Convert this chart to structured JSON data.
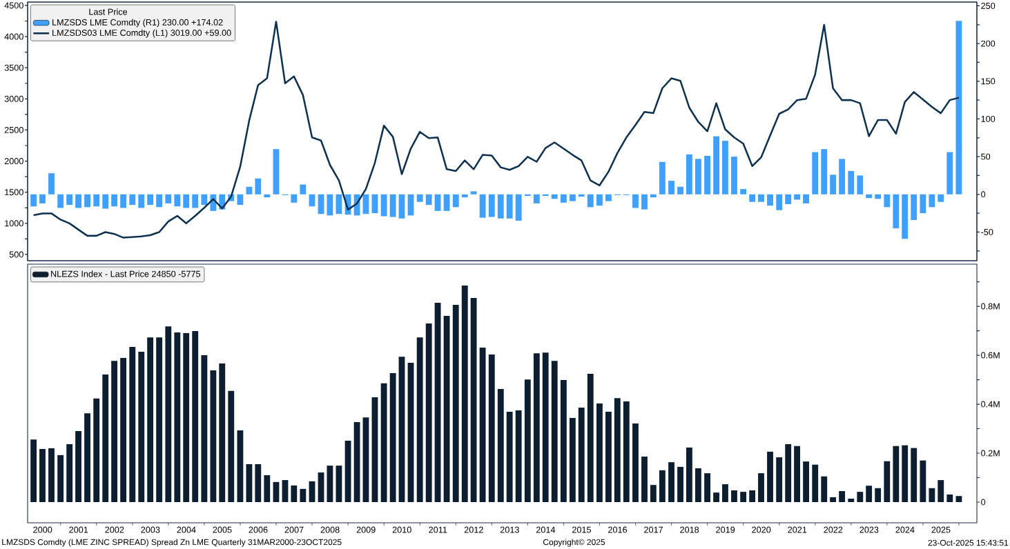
{
  "chart_data": [
    {
      "type": "bar",
      "legend": "top left",
      "legend_title": "Last Price",
      "tick_labels": "y",
      "x": [
        "2000-03-31",
        "2000-06-30",
        "2000-09-30",
        "2000-12-31",
        "2001-03-31",
        "2001-06-30",
        "2001-09-30",
        "2001-12-31",
        "2002-03-31",
        "2002-06-30",
        "2002-09-30",
        "2002-12-31",
        "2003-03-31",
        "2003-06-30",
        "2003-09-30",
        "2003-12-31",
        "2004-03-31",
        "2004-06-30",
        "2004-09-30",
        "2004-12-31",
        "2005-03-31",
        "2005-06-30",
        "2005-09-30",
        "2005-12-31",
        "2006-03-31",
        "2006-06-30",
        "2006-09-30",
        "2006-12-31",
        "2007-03-31",
        "2007-06-30",
        "2007-09-30",
        "2007-12-31",
        "2008-03-31",
        "2008-06-30",
        "2008-09-30",
        "2008-12-31",
        "2009-03-31",
        "2009-06-30",
        "2009-09-30",
        "2009-12-31",
        "2010-03-31",
        "2010-06-30",
        "2010-09-30",
        "2010-12-31",
        "2011-03-31",
        "2011-06-30",
        "2011-09-30",
        "2011-12-31",
        "2012-03-31",
        "2012-06-30",
        "2012-09-30",
        "2012-12-31",
        "2013-03-31",
        "2013-06-30",
        "2013-09-30",
        "2013-12-31",
        "2014-03-31",
        "2014-06-30",
        "2014-09-30",
        "2014-12-31",
        "2015-03-31",
        "2015-06-30",
        "2015-09-30",
        "2015-12-31",
        "2016-03-31",
        "2016-06-30",
        "2016-09-30",
        "2016-12-31",
        "2017-03-31",
        "2017-06-30",
        "2017-09-30",
        "2017-12-31",
        "2018-03-31",
        "2018-06-30",
        "2018-09-30",
        "2018-12-31",
        "2019-03-31",
        "2019-06-30",
        "2019-09-30",
        "2019-12-31",
        "2020-03-31",
        "2020-06-30",
        "2020-09-30",
        "2020-12-31",
        "2021-03-31",
        "2021-06-30",
        "2021-09-30",
        "2021-12-31",
        "2022-03-31",
        "2022-06-30",
        "2022-09-30",
        "2022-12-31",
        "2023-03-31",
        "2023-06-30",
        "2023-09-30",
        "2023-12-31",
        "2024-03-31",
        "2024-06-30",
        "2024-09-30",
        "2024-12-31",
        "2025-03-31",
        "2025-06-30",
        "2025-09-30",
        "2025-12-31"
      ],
      "xlim": [
        "2000-02",
        "2026-07"
      ],
      "ylim": [
        400,
        4555
      ],
      "yticks": [
        500,
        {
          "value": 750,
          "label": null
        },
        1000,
        {
          "value": 1250,
          "label": null
        },
        1500,
        {
          "value": 1750,
          "label": null
        },
        2000,
        {
          "value": 2250,
          "label": null
        },
        2500,
        {
          "value": 2750,
          "label": null
        },
        3000,
        {
          "value": 3250,
          "label": null
        },
        3500,
        {
          "value": 3750,
          "label": null
        },
        4000,
        {
          "value": 4250,
          "label": null
        },
        4500
      ],
      "y2lim": [
        -88,
        255
      ],
      "y2ticks": [
        {
          "value": -75,
          "label": null
        },
        -50,
        {
          "value": -25,
          "label": null
        },
        0,
        {
          "value": 25,
          "label": null
        },
        50,
        {
          "value": 75,
          "label": null
        },
        100,
        {
          "value": 125,
          "label": null
        },
        150,
        {
          "value": 175,
          "label": null
        },
        200,
        {
          "value": 225,
          "label": null
        },
        250
      ],
      "series": [
        {
          "name": "LMZSDS LME Comdty (R1) 230.00 +174.02",
          "axis": "y2",
          "color": "#3fa0ff",
          "values": [
            -16,
            -12,
            28,
            -18,
            -14,
            -18,
            -17,
            -16,
            -19,
            -16,
            -18,
            -14,
            -18,
            -14,
            -17,
            -12,
            -16,
            -18,
            -18,
            -14,
            -22,
            -20,
            -9,
            -14,
            10,
            21,
            -4,
            60,
            -1,
            -11,
            13,
            -16,
            -26,
            -28,
            -26,
            -27,
            -28,
            -26,
            -25,
            -29,
            -30,
            -32,
            -28,
            -10,
            -14,
            -22,
            -22,
            -17,
            -4,
            4,
            -31,
            -30,
            -32,
            -32,
            -35,
            -2,
            -12,
            -2,
            -6,
            -11,
            -9,
            -3,
            -17,
            -15,
            -9,
            -1,
            -1,
            -18,
            -20,
            -4,
            43,
            18,
            10,
            53,
            47,
            51,
            77,
            71,
            50,
            7,
            -10,
            -10,
            -15,
            -21,
            -13,
            -7,
            -12,
            56,
            60,
            26,
            47,
            31,
            25,
            -5,
            -6,
            -17,
            -45,
            -59,
            -34,
            -25,
            -17,
            -10,
            56,
            230
          ]
        },
        {
          "name": "LMZSDS03 LME Comdty (L1) 3019.00 +59.00",
          "type": "line",
          "axis": "y",
          "color": "#0e3150",
          "values": [
            1130,
            1160,
            1160,
            1060,
            1000,
            900,
            800,
            800,
            860,
            830,
            770,
            780,
            790,
            810,
            860,
            1030,
            1120,
            1000,
            1120,
            1250,
            1390,
            1240,
            1430,
            1910,
            2650,
            3220,
            3330,
            4240,
            3250,
            3360,
            3060,
            2380,
            2330,
            1940,
            1690,
            1220,
            1320,
            1550,
            1970,
            2570,
            2390,
            1790,
            2200,
            2470,
            2370,
            2380,
            1870,
            1840,
            2010,
            1870,
            2100,
            2090,
            1900,
            1860,
            1920,
            2070,
            1990,
            2210,
            2300,
            2200,
            2100,
            2010,
            1690,
            1610,
            1830,
            2130,
            2380,
            2580,
            2790,
            2770,
            3170,
            3330,
            3290,
            2860,
            2630,
            2480,
            2930,
            2510,
            2380,
            2280,
            1920,
            2060,
            2410,
            2760,
            2830,
            2980,
            3000,
            3390,
            4190,
            3170,
            2980,
            2980,
            2930,
            2400,
            2660,
            2660,
            2440,
            2950,
            3110,
            2990,
            2870,
            2770,
            2980,
            3019
          ]
        }
      ]
    },
    {
      "type": "bar",
      "legend": "top left",
      "x": [
        "2000-03-31",
        "2000-06-30",
        "2000-09-30",
        "2000-12-31",
        "2001-03-31",
        "2001-06-30",
        "2001-09-30",
        "2001-12-31",
        "2002-03-31",
        "2002-06-30",
        "2002-09-30",
        "2002-12-31",
        "2003-03-31",
        "2003-06-30",
        "2003-09-30",
        "2003-12-31",
        "2004-03-31",
        "2004-06-30",
        "2004-09-30",
        "2004-12-31",
        "2005-03-31",
        "2005-06-30",
        "2005-09-30",
        "2005-12-31",
        "2006-03-31",
        "2006-06-30",
        "2006-09-30",
        "2006-12-31",
        "2007-03-31",
        "2007-06-30",
        "2007-09-30",
        "2007-12-31",
        "2008-03-31",
        "2008-06-30",
        "2008-09-30",
        "2008-12-31",
        "2009-03-31",
        "2009-06-30",
        "2009-09-30",
        "2009-12-31",
        "2010-03-31",
        "2010-06-30",
        "2010-09-30",
        "2010-12-31",
        "2011-03-31",
        "2011-06-30",
        "2011-09-30",
        "2011-12-31",
        "2012-03-31",
        "2012-06-30",
        "2012-09-30",
        "2012-12-31",
        "2013-03-31",
        "2013-06-30",
        "2013-09-30",
        "2013-12-31",
        "2014-03-31",
        "2014-06-30",
        "2014-09-30",
        "2014-12-31",
        "2015-03-31",
        "2015-06-30",
        "2015-09-30",
        "2015-12-31",
        "2016-03-31",
        "2016-06-30",
        "2016-09-30",
        "2016-12-31",
        "2017-03-31",
        "2017-06-30",
        "2017-09-30",
        "2017-12-31",
        "2018-03-31",
        "2018-06-30",
        "2018-09-30",
        "2018-12-31",
        "2019-03-31",
        "2019-06-30",
        "2019-09-30",
        "2019-12-31",
        "2020-03-31",
        "2020-06-30",
        "2020-09-30",
        "2020-12-31",
        "2021-03-31",
        "2021-06-30",
        "2021-09-30",
        "2021-12-31",
        "2022-03-31",
        "2022-06-30",
        "2022-09-30",
        "2022-12-31",
        "2023-03-31",
        "2023-06-30",
        "2023-09-30",
        "2023-12-31",
        "2024-03-31",
        "2024-06-30",
        "2024-09-30",
        "2024-12-31",
        "2025-03-31",
        "2025-06-30",
        "2025-09-30",
        "2025-12-31"
      ],
      "xlim": [
        "2000-02",
        "2026-07"
      ],
      "xticks": [
        {
          "value": "2000-07",
          "label": "2000"
        },
        {
          "value": "2001-01",
          "label": null
        },
        {
          "value": "2001-07",
          "label": "2001"
        },
        {
          "value": "2002-01",
          "label": null
        },
        {
          "value": "2002-07",
          "label": "2002"
        },
        {
          "value": "2003-01",
          "label": null
        },
        {
          "value": "2003-07",
          "label": "2003"
        },
        {
          "value": "2004-01",
          "label": null
        },
        {
          "value": "2004-07",
          "label": "2004"
        },
        {
          "value": "2005-01",
          "label": null
        },
        {
          "value": "2005-07",
          "label": "2005"
        },
        {
          "value": "2006-01",
          "label": null
        },
        {
          "value": "2006-07",
          "label": "2006"
        },
        {
          "value": "2007-01",
          "label": null
        },
        {
          "value": "2007-07",
          "label": "2007"
        },
        {
          "value": "2008-01",
          "label": null
        },
        {
          "value": "2008-07",
          "label": "2008"
        },
        {
          "value": "2009-01",
          "label": null
        },
        {
          "value": "2009-07",
          "label": "2009"
        },
        {
          "value": "2010-01",
          "label": null
        },
        {
          "value": "2010-07",
          "label": "2010"
        },
        {
          "value": "2011-01",
          "label": null
        },
        {
          "value": "2011-07",
          "label": "2011"
        },
        {
          "value": "2012-01",
          "label": null
        },
        {
          "value": "2012-07",
          "label": "2012"
        },
        {
          "value": "2013-01",
          "label": null
        },
        {
          "value": "2013-07",
          "label": "2013"
        },
        {
          "value": "2014-01",
          "label": null
        },
        {
          "value": "2014-07",
          "label": "2014"
        },
        {
          "value": "2015-01",
          "label": null
        },
        {
          "value": "2015-07",
          "label": "2015"
        },
        {
          "value": "2016-01",
          "label": null
        },
        {
          "value": "2016-07",
          "label": "2016"
        },
        {
          "value": "2017-01",
          "label": null
        },
        {
          "value": "2017-07",
          "label": "2017"
        },
        {
          "value": "2018-01",
          "label": null
        },
        {
          "value": "2018-07",
          "label": "2018"
        },
        {
          "value": "2019-01",
          "label": null
        },
        {
          "value": "2019-07",
          "label": "2019"
        },
        {
          "value": "2020-01",
          "label": null
        },
        {
          "value": "2020-07",
          "label": "2020"
        },
        {
          "value": "2021-01",
          "label": null
        },
        {
          "value": "2021-07",
          "label": "2021"
        },
        {
          "value": "2022-01",
          "label": null
        },
        {
          "value": "2022-07",
          "label": "2022"
        },
        {
          "value": "2023-01",
          "label": null
        },
        {
          "value": "2023-07",
          "label": "2023"
        },
        {
          "value": "2024-01",
          "label": null
        },
        {
          "value": "2024-07",
          "label": "2024"
        },
        {
          "value": "2025-01",
          "label": null
        },
        {
          "value": "2025-07",
          "label": "2025"
        },
        {
          "value": "2026-01",
          "label": null
        }
      ],
      "y2lim": [
        -84500,
        972000
      ],
      "y2ticks": [
        0,
        {
          "value": 100000,
          "label": null
        },
        {
          "value": 200000,
          "label": "0.2M"
        },
        {
          "value": 300000,
          "label": null
        },
        {
          "value": 400000,
          "label": "0.4M"
        },
        {
          "value": 500000,
          "label": null
        },
        {
          "value": 600000,
          "label": "0.6M"
        },
        {
          "value": 700000,
          "label": null
        },
        {
          "value": 800000,
          "label": "0.8M"
        },
        {
          "value": 900000,
          "label": null
        }
      ],
      "series": [
        {
          "name": "NLEZS Index - Last Price 24850 -5775",
          "axis": "y2",
          "color": "#0d1e30",
          "values": [
            256000,
            217000,
            220000,
            192000,
            237000,
            290000,
            363000,
            423000,
            521000,
            577000,
            589000,
            634000,
            614000,
            673000,
            673000,
            718000,
            693000,
            690000,
            699000,
            600000,
            538000,
            566000,
            454000,
            293000,
            155000,
            155000,
            110000,
            82000,
            90000,
            68000,
            54000,
            85000,
            121000,
            149000,
            149000,
            251000,
            327000,
            346000,
            428000,
            485000,
            527000,
            594000,
            569000,
            673000,
            730000,
            814000,
            761000,
            806000,
            885000,
            834000,
            631000,
            603000,
            462000,
            369000,
            375000,
            501000,
            608000,
            611000,
            577000,
            499000,
            344000,
            386000,
            524000,
            403000,
            369000,
            425000,
            411000,
            321000,
            186000,
            70000,
            130000,
            163000,
            144000,
            223000,
            138000,
            118000,
            39000,
            73000,
            48000,
            42000,
            48000,
            118000,
            206000,
            183000,
            237000,
            229000,
            166000,
            153000,
            105000,
            20000,
            45000,
            14000,
            42000,
            67000,
            57000,
            167000,
            229000,
            232000,
            221000,
            170000,
            57000,
            90000,
            31000,
            24850
          ]
        }
      ],
      "annotations": [
        "LMZSDS Comdty (LME ZINC SPREAD) Spread Zn LME Quarterly 31MAR2000-23OCT2025",
        "Copyright© 2025",
        "23-Oct-2025 15:43:51"
      ]
    }
  ]
}
